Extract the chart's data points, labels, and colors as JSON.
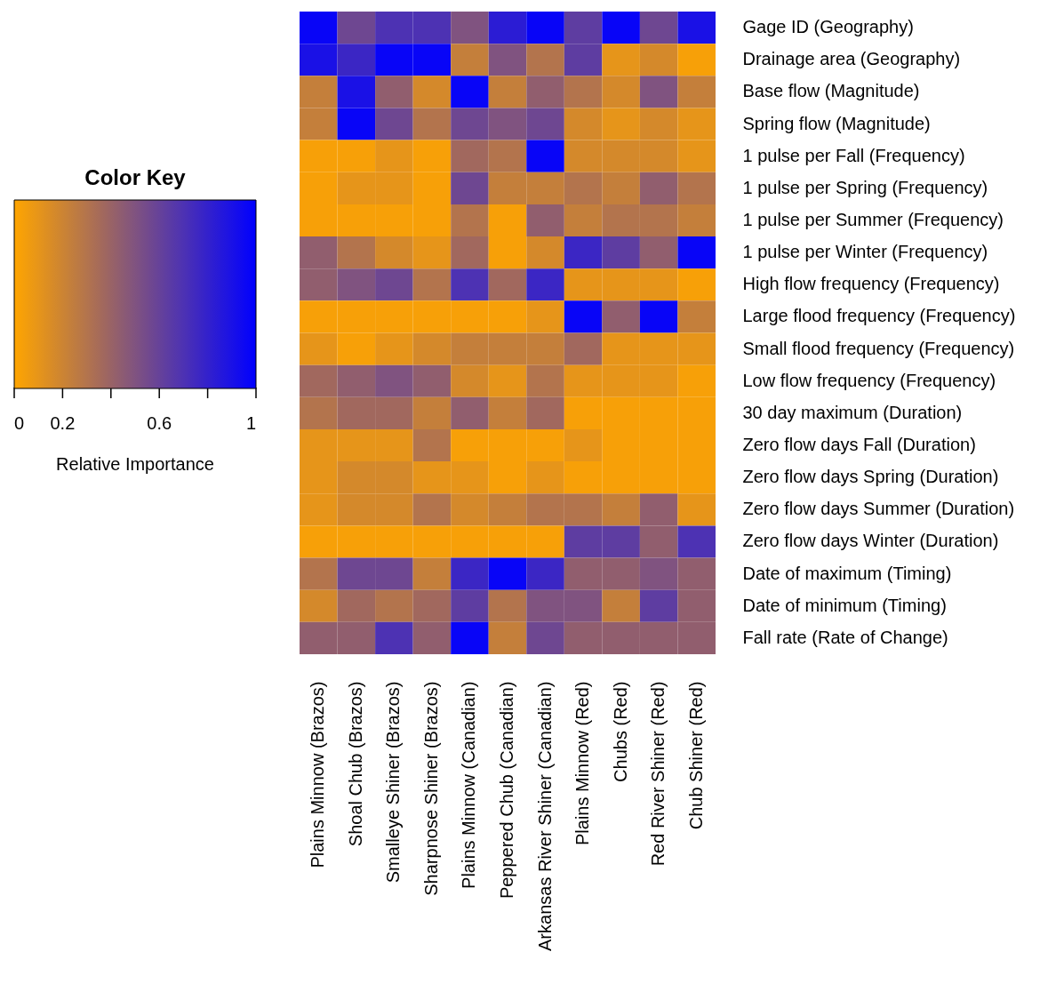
{
  "chart_data": {
    "type": "heatmap",
    "clabel": "Relative Importance",
    "legend_title": "Color Key",
    "categories": [
      "Plains Minnow (Brazos)",
      "Shoal Chub (Brazos)",
      "Smalleye Shiner (Brazos)",
      "Sharpnose Shiner (Brazos)",
      "Plains Minnow (Canadian)",
      "Peppered Chub (Canadian)",
      "Arkansas River Shiner (Canadian)",
      "Plains Minnow (Red)",
      "Chubs (Red)",
      "Red River Shiner (Red)",
      "Chub Shiner (Red)"
    ],
    "y_categories": [
      "Gage ID (Geography)",
      "Drainage area (Geography)",
      "Base flow (Magnitude)",
      "Spring flow (Magnitude)",
      "1 pulse per Fall (Frequency)",
      "1 pulse per Spring (Frequency)",
      "1 pulse per Summer (Frequency)",
      "1 pulse per Winter (Frequency)",
      "High flow frequency (Frequency)",
      "Large flood frequency (Frequency)",
      "Small flood frequency (Frequency)",
      "Low flow frequency (Frequency)",
      "30 day maximum (Duration)",
      "Zero flow days Fall (Duration)",
      "Zero flow days Spring (Duration)",
      "Zero flow days Summer (Duration)",
      "Zero flow days Winter (Duration)",
      "Date of maximum (Timing)",
      "Date of minimum (Timing)",
      "Fall rate (Rate of Change)"
    ],
    "cells": [
      [
        0.97,
        0.57,
        0.7,
        0.7,
        0.5,
        0.83,
        0.97,
        0.63,
        0.97,
        0.57,
        0.9
      ],
      [
        0.9,
        0.77,
        0.97,
        0.97,
        0.23,
        0.5,
        0.3,
        0.63,
        0.1,
        0.17,
        0.03
      ],
      [
        0.23,
        0.9,
        0.43,
        0.17,
        0.97,
        0.23,
        0.43,
        0.3,
        0.17,
        0.5,
        0.23
      ],
      [
        0.23,
        0.97,
        0.57,
        0.3,
        0.57,
        0.5,
        0.57,
        0.17,
        0.1,
        0.17,
        0.1
      ],
      [
        0.03,
        0.03,
        0.1,
        0.03,
        0.37,
        0.3,
        0.97,
        0.17,
        0.17,
        0.17,
        0.1
      ],
      [
        0.03,
        0.1,
        0.1,
        0.03,
        0.57,
        0.23,
        0.23,
        0.3,
        0.23,
        0.43,
        0.3
      ],
      [
        0.03,
        0.03,
        0.03,
        0.03,
        0.3,
        0.03,
        0.43,
        0.23,
        0.3,
        0.3,
        0.23
      ],
      [
        0.43,
        0.3,
        0.17,
        0.1,
        0.37,
        0.03,
        0.17,
        0.77,
        0.63,
        0.43,
        0.97
      ],
      [
        0.43,
        0.5,
        0.57,
        0.3,
        0.7,
        0.37,
        0.77,
        0.1,
        0.1,
        0.1,
        0.03
      ],
      [
        0.03,
        0.03,
        0.03,
        0.03,
        0.03,
        0.03,
        0.1,
        0.97,
        0.43,
        0.97,
        0.23
      ],
      [
        0.1,
        0.03,
        0.1,
        0.17,
        0.23,
        0.23,
        0.23,
        0.37,
        0.1,
        0.1,
        0.1
      ],
      [
        0.37,
        0.43,
        0.5,
        0.43,
        0.17,
        0.1,
        0.3,
        0.1,
        0.1,
        0.1,
        0.03
      ],
      [
        0.3,
        0.37,
        0.37,
        0.23,
        0.43,
        0.23,
        0.37,
        0.03,
        0.03,
        0.03,
        0.03
      ],
      [
        0.1,
        0.1,
        0.1,
        0.3,
        0.03,
        0.03,
        0.03,
        0.1,
        0.03,
        0.03,
        0.03
      ],
      [
        0.1,
        0.17,
        0.17,
        0.1,
        0.1,
        0.03,
        0.1,
        0.03,
        0.03,
        0.03,
        0.03
      ],
      [
        0.1,
        0.17,
        0.17,
        0.3,
        0.17,
        0.23,
        0.3,
        0.3,
        0.23,
        0.43,
        0.1
      ],
      [
        0.03,
        0.03,
        0.03,
        0.03,
        0.03,
        0.03,
        0.03,
        0.63,
        0.63,
        0.43,
        0.7
      ],
      [
        0.3,
        0.57,
        0.57,
        0.23,
        0.77,
        0.97,
        0.77,
        0.43,
        0.43,
        0.5,
        0.43
      ],
      [
        0.17,
        0.37,
        0.3,
        0.37,
        0.63,
        0.3,
        0.5,
        0.5,
        0.23,
        0.63,
        0.43
      ],
      [
        0.43,
        0.43,
        0.7,
        0.43,
        0.97,
        0.23,
        0.57,
        0.43,
        0.43,
        0.43,
        0.43
      ]
    ],
    "clim": [
      0,
      1
    ],
    "cticks": [
      0,
      0.2,
      {
        "value": 0.4,
        "label": null
      },
      0.6,
      {
        "value": 0.8,
        "label": null
      },
      1
    ],
    "colors": [
      "#ffa500",
      "#0000ff"
    ]
  }
}
